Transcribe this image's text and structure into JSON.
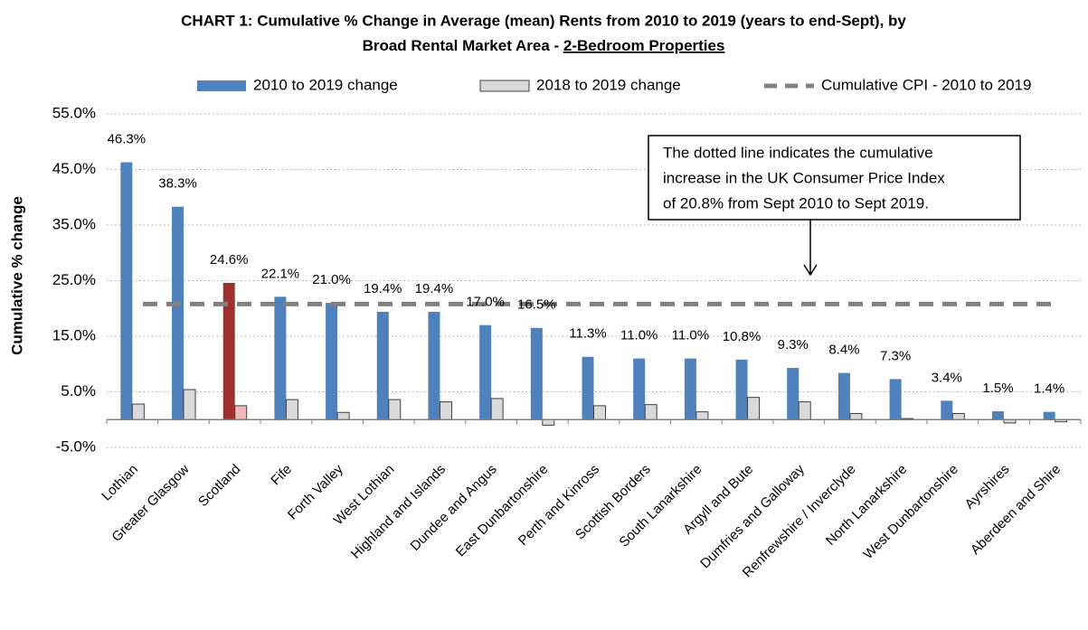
{
  "chart_data": {
    "type": "bar",
    "title": [
      "CHART 1:  Cumulative % Change in Average (mean) Rents from 2010 to 2019 (years to end-Sept), by",
      "Broad Rental Market Area - ",
      "2-Bedroom Properties"
    ],
    "y_label": "Cumulative % change",
    "categories": [
      "Lothian",
      "Greater Glasgow",
      "Scotland",
      "Fife",
      "Forth Valley",
      "West Lothian",
      "Highland and Islands",
      "Dundee and Angus",
      "East Dunbartonshire",
      "Perth and Kinross",
      "Scottish Borders",
      "South Lanarkshire",
      "Argyll and Bute",
      "Dumfries and Galloway",
      "Renfrewshire / Inverclyde",
      "North Lanarkshire",
      "West Dunbartonshire",
      "Ayrshires",
      "Aberdeen and Shire"
    ],
    "series": [
      {
        "name": "2010 to 2019 change",
        "color": "#4f81bd",
        "highlight_color": "#a0302e",
        "values": [
          46.3,
          38.3,
          24.6,
          22.1,
          21.0,
          19.4,
          19.4,
          17.0,
          16.5,
          11.3,
          11.0,
          11.0,
          10.8,
          9.3,
          8.4,
          7.3,
          3.4,
          1.5,
          1.4
        ],
        "value_labels": [
          "46.3%",
          "38.3%",
          "24.6%",
          "22.1%",
          "21.0%",
          "19.4%",
          "19.4%",
          "17.0%",
          "16.5%",
          "11.3%",
          "11.0%",
          "11.0%",
          "10.8%",
          "9.3%",
          "8.4%",
          "7.3%",
          "3.4%",
          "1.5%",
          "1.4%"
        ]
      },
      {
        "name": "2018 to 2019 change",
        "color": "#d9d9d9",
        "highlight_color": "#f2b8b8",
        "values": [
          2.8,
          5.4,
          2.5,
          3.6,
          1.3,
          3.6,
          3.2,
          3.8,
          -1.0,
          2.5,
          2.7,
          1.4,
          4.0,
          3.2,
          1.1,
          0.2,
          1.1,
          -0.6,
          -0.4
        ]
      }
    ],
    "highlight_index": 2,
    "reference_line": {
      "name": "Cumulative CPI - 2010 to 2019",
      "value": 20.8,
      "color": "#808080"
    },
    "annotation": [
      "The dotted line indicates the cumulative",
      "increase in the UK Consumer Price Index",
      "of 20.8% from Sept 2010 to Sept 2019."
    ],
    "ylim": [
      -5,
      55
    ],
    "yticks": [
      {
        "value": -5,
        "label": "-5.0%"
      },
      {
        "value": 5,
        "label": "5.0%"
      },
      {
        "value": 15,
        "label": "15.0%"
      },
      {
        "value": 25,
        "label": "25.0%"
      },
      {
        "value": 35,
        "label": "35.0%"
      },
      {
        "value": 45,
        "label": "45.0%"
      },
      {
        "value": 55,
        "label": "55.0%"
      }
    ],
    "grid": true,
    "legend": "top"
  }
}
